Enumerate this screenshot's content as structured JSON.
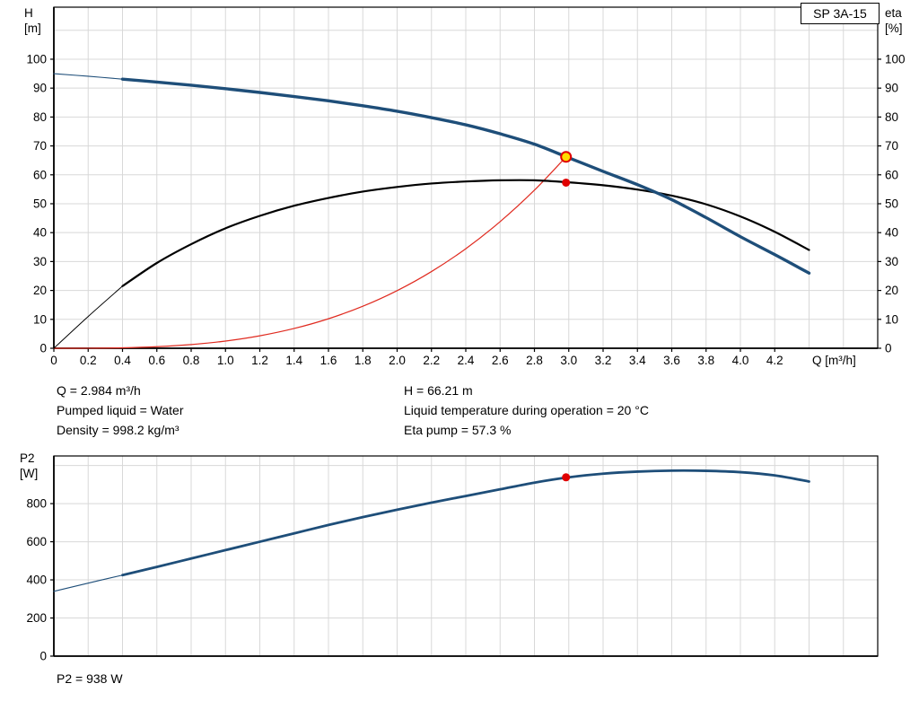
{
  "title_box": "SP 3A-15",
  "axes": {
    "h_line1": "H",
    "h_line2": "[m]",
    "eta_line1": "eta",
    "eta_line2": "[%]",
    "x_unit": "Q [m³/h]",
    "p2_line1": "P2",
    "p2_line2": "[W]"
  },
  "annotations": {
    "q": "Q = 2.984 m³/h",
    "h": "H = 66.21 m",
    "pumped_liquid": "Pumped liquid = Water",
    "liquid_temp": "Liquid temperature during operation = 20 °C",
    "density": "Density = 998.2 kg/m³",
    "eta_pump": "Eta pump = 57.3 %",
    "p2": "P2 = 938 W"
  },
  "colors": {
    "grid": "#d8d8d8",
    "axis": "#000000",
    "curve_blue": "#1e4e79",
    "curve_black": "#000000",
    "curve_red": "#e02b20",
    "marker_yellow": "#ffdd00",
    "marker_red": "#e00000"
  },
  "chart_data": [
    {
      "type": "line",
      "title": "SP 3A-15",
      "xlabel": "Q [m³/h]",
      "ylabel_left": "H [m]",
      "ylabel_right": "eta [%]",
      "xlim": [
        0,
        4.8
      ],
      "ylim": [
        0,
        118
      ],
      "xtick_step": 0.2,
      "xtick_labels": [
        "0",
        "0.2",
        "0.4",
        "0.6",
        "0.8",
        "1.0",
        "1.2",
        "1.4",
        "1.6",
        "1.8",
        "2.0",
        "2.2",
        "2.4",
        "2.6",
        "2.8",
        "3.0",
        "3.2",
        "3.4",
        "3.6",
        "3.8",
        "4.0",
        "4.2"
      ],
      "ytick_step": 10,
      "ytick_labels": [
        "0",
        "10",
        "20",
        "30",
        "40",
        "50",
        "60",
        "70",
        "80",
        "90",
        "100"
      ],
      "series": [
        {
          "name": "system-curve",
          "color": "#e02b20",
          "width": 1.2,
          "points": [
            [
              0,
              0
            ],
            [
              0.2,
              0.02
            ],
            [
              0.4,
              0.16
            ],
            [
              0.6,
              0.54
            ],
            [
              0.8,
              1.28
            ],
            [
              1.0,
              2.49
            ],
            [
              1.2,
              4.31
            ],
            [
              1.4,
              6.84
            ],
            [
              1.6,
              10.21
            ],
            [
              1.8,
              14.53
            ],
            [
              2.0,
              19.94
            ],
            [
              2.2,
              26.53
            ],
            [
              2.4,
              34.44
            ],
            [
              2.6,
              43.8
            ],
            [
              2.8,
              54.7
            ],
            [
              2.984,
              66.21
            ]
          ]
        },
        {
          "name": "eta-curve",
          "color": "#000000",
          "width": 2.2,
          "thin_width": 1,
          "thin_until": 0.4,
          "points": [
            [
              0,
              0
            ],
            [
              0.2,
              11.0
            ],
            [
              0.4,
              21.5
            ],
            [
              0.6,
              29.5
            ],
            [
              0.8,
              36.0
            ],
            [
              1.0,
              41.5
            ],
            [
              1.2,
              45.8
            ],
            [
              1.4,
              49.3
            ],
            [
              1.6,
              52.0
            ],
            [
              1.8,
              54.2
            ],
            [
              2.0,
              55.8
            ],
            [
              2.2,
              57.0
            ],
            [
              2.4,
              57.7
            ],
            [
              2.6,
              58.1
            ],
            [
              2.8,
              58.1
            ],
            [
              3.0,
              57.4
            ],
            [
              3.2,
              56.4
            ],
            [
              3.4,
              54.9
            ],
            [
              3.6,
              52.8
            ],
            [
              3.8,
              49.8
            ],
            [
              4.0,
              45.6
            ],
            [
              4.2,
              40.3
            ],
            [
              4.4,
              34.0
            ]
          ]
        },
        {
          "name": "h-curve",
          "color": "#1e4e79",
          "width": 3.4,
          "thin_width": 1.1,
          "thin_until": 0.4,
          "points": [
            [
              0,
              95.0
            ],
            [
              0.2,
              94.1
            ],
            [
              0.4,
              93.1
            ],
            [
              0.6,
              92.1
            ],
            [
              0.8,
              91.0
            ],
            [
              1.0,
              89.8
            ],
            [
              1.2,
              88.5
            ],
            [
              1.4,
              87.1
            ],
            [
              1.6,
              85.6
            ],
            [
              1.8,
              83.9
            ],
            [
              2.0,
              82.0
            ],
            [
              2.2,
              79.8
            ],
            [
              2.4,
              77.3
            ],
            [
              2.6,
              74.2
            ],
            [
              2.8,
              70.6
            ],
            [
              3.0,
              65.9
            ],
            [
              3.2,
              61.2
            ],
            [
              3.4,
              56.6
            ],
            [
              3.6,
              51.4
            ],
            [
              3.8,
              45.2
            ],
            [
              4.0,
              38.6
            ],
            [
              4.2,
              32.4
            ],
            [
              4.4,
              26.0
            ]
          ]
        }
      ],
      "markers": [
        {
          "name": "duty-point-marker",
          "x": 2.984,
          "y": 66.21,
          "r": 5.5,
          "fill": "#ffdd00",
          "stroke": "#e00000",
          "stroke_width": 2
        },
        {
          "name": "eta-point-marker",
          "x": 2.984,
          "y": 57.3,
          "r": 4.5,
          "fill": "#e00000"
        }
      ]
    },
    {
      "type": "line",
      "title": "P2 curve",
      "xlabel": "Q [m³/h]",
      "ylabel_left": "P2 [W]",
      "xlim": [
        0,
        4.8
      ],
      "ylim": [
        0,
        1050
      ],
      "xtick_step": 0.2,
      "ytick_step": 200,
      "ytick_labels": [
        "0",
        "200",
        "400",
        "600",
        "800"
      ],
      "series": [
        {
          "name": "p2-curve",
          "color": "#1e4e79",
          "width": 2.8,
          "thin_width": 1.1,
          "thin_until": 0.4,
          "points": [
            [
              0,
              340
            ],
            [
              0.2,
              383
            ],
            [
              0.4,
              425
            ],
            [
              0.6,
              468
            ],
            [
              0.8,
              512
            ],
            [
              1.0,
              556
            ],
            [
              1.2,
              600
            ],
            [
              1.4,
              644
            ],
            [
              1.6,
              688
            ],
            [
              1.8,
              729
            ],
            [
              2.0,
              768
            ],
            [
              2.2,
              805
            ],
            [
              2.4,
              840
            ],
            [
              2.6,
              875
            ],
            [
              2.8,
              910
            ],
            [
              3.0,
              938
            ],
            [
              3.2,
              957
            ],
            [
              3.4,
              968
            ],
            [
              3.6,
              973
            ],
            [
              3.8,
              972
            ],
            [
              4.0,
              965
            ],
            [
              4.2,
              948
            ],
            [
              4.4,
              916
            ]
          ]
        }
      ],
      "markers": [
        {
          "name": "p2-point-marker",
          "x": 2.984,
          "y": 938,
          "r": 4.5,
          "fill": "#e00000"
        }
      ]
    }
  ]
}
